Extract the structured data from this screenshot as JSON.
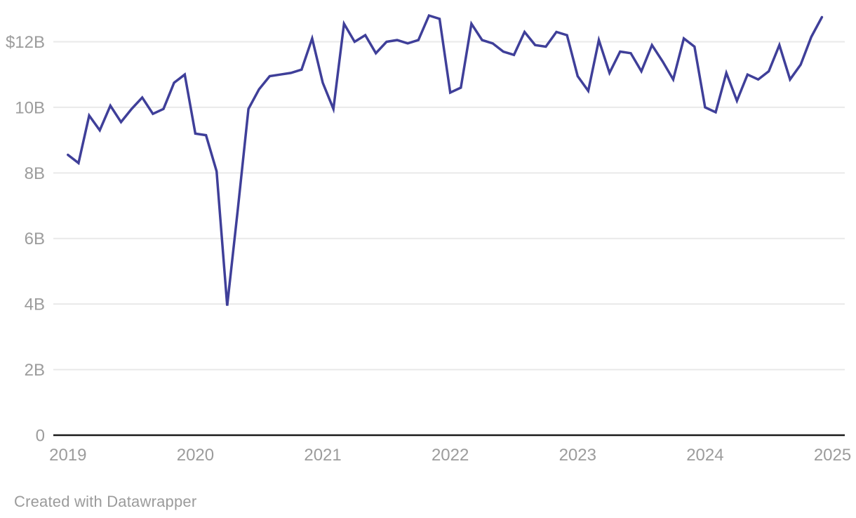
{
  "footer": {
    "attribution": "Created with Datawrapper"
  },
  "colors": {
    "line": "#3f3f99",
    "gridline": "#e9e9e9",
    "baseline": "#1a1a1a",
    "tick_label": "#9c9c9c",
    "background": "#ffffff"
  },
  "chart_data": {
    "type": "line",
    "title": "",
    "xlabel": "",
    "ylabel": "",
    "x_unit": "month",
    "x_start": "2019-01",
    "x_end": "2024-12",
    "x_tick_labels": [
      "2019",
      "2020",
      "2021",
      "2022",
      "2023",
      "2024",
      "2025"
    ],
    "y_ticks": [
      0,
      2,
      4,
      6,
      8,
      10,
      12
    ],
    "y_tick_labels": [
      "0",
      "2B",
      "4B",
      "6B",
      "8B",
      "10B",
      "$12B"
    ],
    "ylim": [
      0,
      13.3
    ],
    "grid": "horizontal",
    "legend": "none",
    "series": [
      {
        "name": "monthly-value-billions-usd",
        "values": [
          8.55,
          8.3,
          9.75,
          9.3,
          10.05,
          9.55,
          9.95,
          10.3,
          9.8,
          9.95,
          10.75,
          11.0,
          9.2,
          9.15,
          8.05,
          3.95,
          6.9,
          9.95,
          10.55,
          10.95,
          11.0,
          11.05,
          11.15,
          12.1,
          10.75,
          9.95,
          12.55,
          12.0,
          12.2,
          11.65,
          12.0,
          12.05,
          11.95,
          12.05,
          12.8,
          12.7,
          10.45,
          10.6,
          12.55,
          12.05,
          11.95,
          11.7,
          11.6,
          12.3,
          11.9,
          11.85,
          12.3,
          12.2,
          10.95,
          10.5,
          12.05,
          11.05,
          11.7,
          11.65,
          11.1,
          11.9,
          11.4,
          10.85,
          12.1,
          11.85,
          10.0,
          9.85,
          11.05,
          10.2,
          11.0,
          10.85,
          11.1,
          11.9,
          10.85,
          11.3,
          12.15,
          12.75
        ]
      }
    ]
  }
}
